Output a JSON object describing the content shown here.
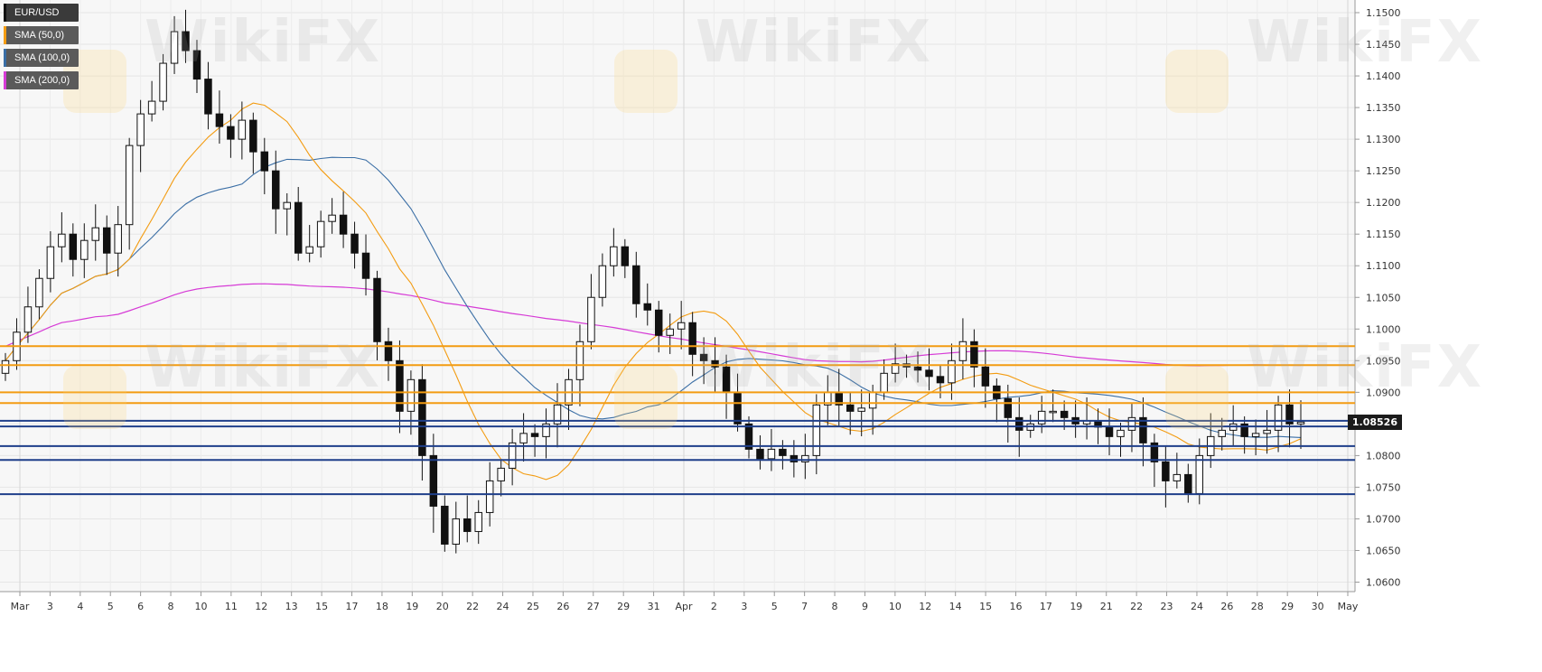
{
  "chart_data": {
    "type": "candlestick",
    "symbol": "EUR/USD",
    "legend": [
      {
        "label": "EUR/USD",
        "color": "#111111"
      },
      {
        "label": "SMA (50,0)",
        "color": "#f39c12"
      },
      {
        "label": "SMA (100,0)",
        "color": "#3a6ea5"
      },
      {
        "label": "SMA (200,0)",
        "color": "#d63bd6"
      }
    ],
    "ylim": [
      1.0585,
      1.152
    ],
    "yticks": [
      "1.1500",
      "1.1450",
      "1.1400",
      "1.1350",
      "1.1300",
      "1.1250",
      "1.1200",
      "1.1150",
      "1.1100",
      "1.1050",
      "1.1000",
      "1.0950",
      "1.0900",
      "1.0850",
      "1.0800",
      "1.0750",
      "1.0700",
      "1.0650",
      "1.0600"
    ],
    "x_labels": [
      "Mar",
      "3",
      "4",
      "5",
      "6",
      "8",
      "10",
      "11",
      "12",
      "13",
      "15",
      "17",
      "18",
      "19",
      "20",
      "22",
      "24",
      "25",
      "26",
      "27",
      "29",
      "31",
      "Apr",
      "2",
      "3",
      "5",
      "7",
      "8",
      "9",
      "10",
      "12",
      "14",
      "15",
      "16",
      "17",
      "19",
      "21",
      "22",
      "23",
      "24",
      "26",
      "28",
      "29",
      "30",
      "May"
    ],
    "current_price": "1.08526",
    "current_value": 1.08526,
    "resistance_levels": [
      1.0973,
      1.0943,
      1.09,
      1.0883
    ],
    "support_levels": [
      1.0855,
      1.0846,
      1.0815,
      1.0793,
      1.0739
    ],
    "resistance_color": "#f39c12",
    "support_color": "#1f3f8a",
    "closes": [
      1.095,
      1.0995,
      1.1035,
      1.108,
      1.113,
      1.115,
      1.111,
      1.114,
      1.116,
      1.112,
      1.1165,
      1.129,
      1.134,
      1.136,
      1.142,
      1.147,
      1.144,
      1.1395,
      1.134,
      1.132,
      1.13,
      1.133,
      1.128,
      1.125,
      1.119,
      1.12,
      1.112,
      1.113,
      1.117,
      1.118,
      1.115,
      1.112,
      1.108,
      1.098,
      1.095,
      1.087,
      1.092,
      1.08,
      1.072,
      1.066,
      1.07,
      1.068,
      1.071,
      1.076,
      1.078,
      1.082,
      1.0835,
      1.083,
      1.085,
      1.088,
      1.092,
      1.098,
      1.105,
      1.11,
      1.113,
      1.11,
      1.104,
      1.103,
      1.099,
      1.1,
      1.101,
      1.096,
      1.095,
      1.094,
      1.09,
      1.085,
      1.081,
      1.0795,
      1.081,
      1.08,
      1.079,
      1.08,
      1.088,
      1.09,
      1.088,
      1.087,
      1.0875,
      1.09,
      1.093,
      1.0945,
      1.094,
      1.0935,
      1.0925,
      1.0915,
      1.095,
      1.098,
      1.094,
      1.091,
      1.089,
      1.086,
      1.084,
      1.085,
      1.087,
      1.087,
      1.086,
      1.085,
      1.0855,
      1.0845,
      1.083,
      1.084,
      1.086,
      1.082,
      1.079,
      1.076,
      1.077,
      1.074,
      1.08,
      1.083,
      1.084,
      1.085,
      1.083,
      1.0835,
      1.084,
      1.088,
      1.085,
      1.0853
    ]
  }
}
